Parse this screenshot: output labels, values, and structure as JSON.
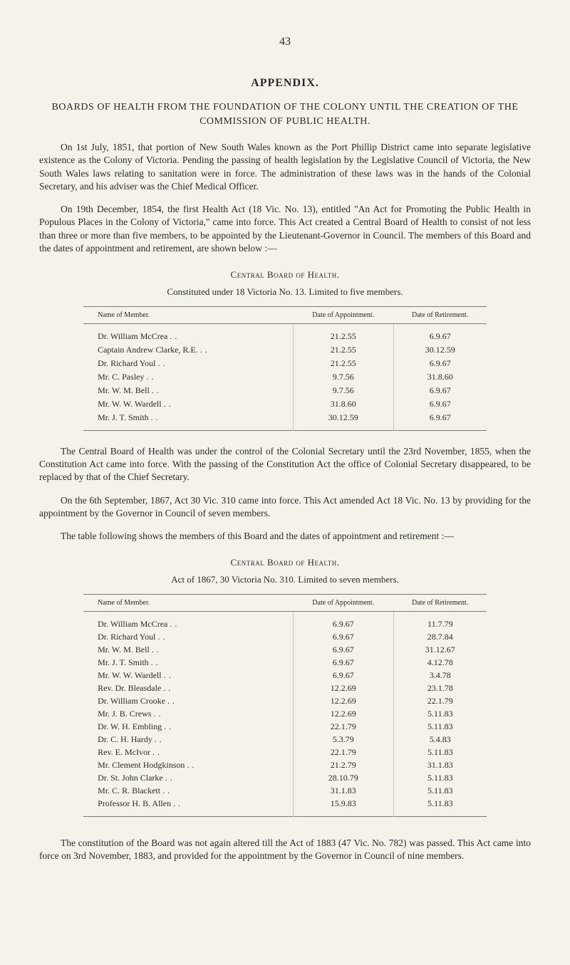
{
  "page_number": "43",
  "appendix_title": "APPENDIX.",
  "main_heading": "BOARDS OF HEALTH FROM THE FOUNDATION OF THE COLONY UNTIL THE CREATION OF THE COMMISSION OF PUBLIC HEALTH.",
  "para1": "On 1st July, 1851, that portion of New South Wales known as the Port Phillip District came into separate legislative existence as the Colony of Victoria. Pending the passing of health legislation by the Legislative Council of Victoria, the New South Wales laws relating to sanitation were in force. The administration of these laws was in the hands of the Colonial Secretary, and his adviser was the Chief Medical Officer.",
  "para2": "On 19th December, 1854, the first Health Act (18 Vic. No. 13), entitled \"An Act for Promoting the Public Health in Populous Places in the Colony of Victoria,\" came into force. This Act created a Central Board of Health to consist of not less than three or more than five members, to be appointed by the Lieutenant-Governor in Council. The members of this Board and the dates of appointment and retirement, are shown below :—",
  "section1_title": "Central Board of Health.",
  "section1_subtitle": "Constituted under 18 Victoria No. 13.  Limited to five members.",
  "table1": {
    "headers": [
      "Name of Member.",
      "Date of Appointment.",
      "Date of Retirement."
    ],
    "rows": [
      [
        "Dr. William McCrea",
        "21.2.55",
        "6.9.67"
      ],
      [
        "Captain Andrew Clarke, R.E.",
        "21.2.55",
        "30.12.59"
      ],
      [
        "Dr. Richard Youl",
        "21.2.55",
        "6.9.67"
      ],
      [
        "Mr. C. Pasley",
        "9.7.56",
        "31.8.60"
      ],
      [
        "Mr. W. M. Bell",
        "9.7.56",
        "6.9.67"
      ],
      [
        "Mr. W. W. Wardell",
        "31.8.60",
        "6.9.67"
      ],
      [
        "Mr. J. T. Smith",
        "30.12.59",
        "6.9.67"
      ]
    ]
  },
  "para3": "The Central Board of Health was under the control of the Colonial Secretary until the 23rd November, 1855, when the Constitution Act came into force. With the passing of the Constitution Act the office of Colonial Secretary disappeared, to be replaced by that of the Chief Secretary.",
  "para4": "On the 6th September, 1867, Act 30 Vic. 310 came into force. This Act amended Act 18 Vic. No. 13 by providing for the appointment by the Governor in Council of seven members.",
  "para5": "The table following shows the members of this Board and the dates of appointment and retirement :—",
  "section2_title": "Central Board of Health.",
  "section2_subtitle": "Act of 1867, 30 Victoria No. 310.  Limited to seven members.",
  "table2": {
    "headers": [
      "Name of Member.",
      "Date of Appointment.",
      "Date of Retirement."
    ],
    "rows": [
      [
        "Dr. William McCrea",
        "6.9.67",
        "11.7.79"
      ],
      [
        "Dr. Richard Youl",
        "6.9.67",
        "28.7.84"
      ],
      [
        "Mr. W. M. Bell",
        "6.9.67",
        "31.12.67"
      ],
      [
        "Mr. J. T. Smith",
        "6.9.67",
        "4.12.78"
      ],
      [
        "Mr. W. W. Wardell",
        "6.9.67",
        "3.4.78"
      ],
      [
        "Rev. Dr. Bleasdale",
        "12.2.69",
        "23.1.78"
      ],
      [
        "Dr. William Crooke",
        "12.2.69",
        "22.1.79"
      ],
      [
        "Mr. J. B. Crews",
        "12.2.69",
        "5.11.83"
      ],
      [
        "Dr. W. H. Embling",
        "22.1.79",
        "5.11.83"
      ],
      [
        "Dr. C. H. Hardy",
        "5.3.79",
        "5.4.83"
      ],
      [
        "Rev. E. McIvor",
        "22.1.79",
        "5.11.83"
      ],
      [
        "Mr. Clement Hodgkinson",
        "21.2.79",
        "31.1.83"
      ],
      [
        "Dr. St. John Clarke",
        "28.10.79",
        "5.11.83"
      ],
      [
        "Mr. C. R. Blackett",
        "31.1.83",
        "5.11.83"
      ],
      [
        "Professor H. B. Allen",
        "15.9.83",
        "5.11.83"
      ]
    ]
  },
  "para6": "The constitution of the Board was not again altered till the Act of 1883 (47 Vic. No. 782) was passed. This Act came into force on 3rd November, 1883, and provided for the appointment by the Governor in Council of nine members.",
  "colors": {
    "page_bg": "#f5f2ea",
    "text": "#2a2a2a",
    "rule": "#7a7a7a",
    "col_divider": "#c8c4ba"
  },
  "typography": {
    "body_font": "Georgia serif",
    "body_size_pt": 13.5,
    "page_num_size_pt": 16,
    "table_size_pt": 12,
    "th_size_pt": 10
  }
}
